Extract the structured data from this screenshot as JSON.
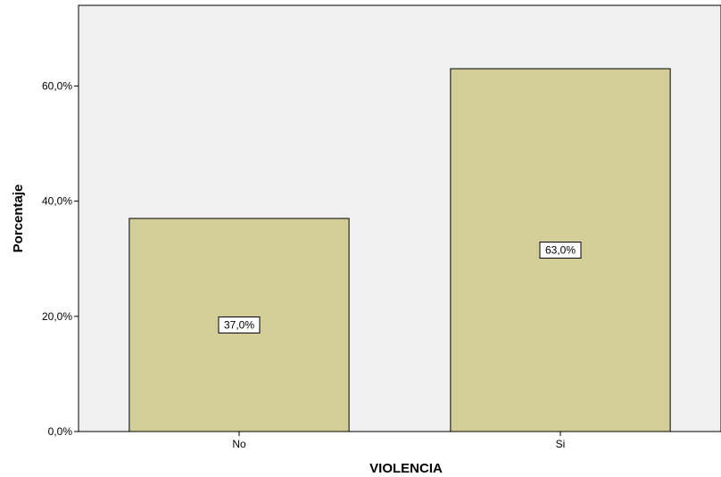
{
  "chart_data": {
    "type": "bar",
    "categories": [
      "No",
      "Si"
    ],
    "values": [
      37.0,
      63.0
    ],
    "data_labels": [
      "37,0%",
      "63,0%"
    ],
    "title": "",
    "xlabel": "VIOLENCIA",
    "ylabel": "Porcentaje",
    "ylim": [
      0,
      74
    ],
    "yticks": [
      0,
      20,
      40,
      60
    ],
    "ytick_labels": [
      "0,0%",
      "20,0%",
      "40,0%",
      "60,0%"
    ],
    "grid": false,
    "colors": {
      "plot_background": "#f0f0f0",
      "bar_fill": "#d3ce97",
      "bar_stroke": "#000000"
    }
  }
}
